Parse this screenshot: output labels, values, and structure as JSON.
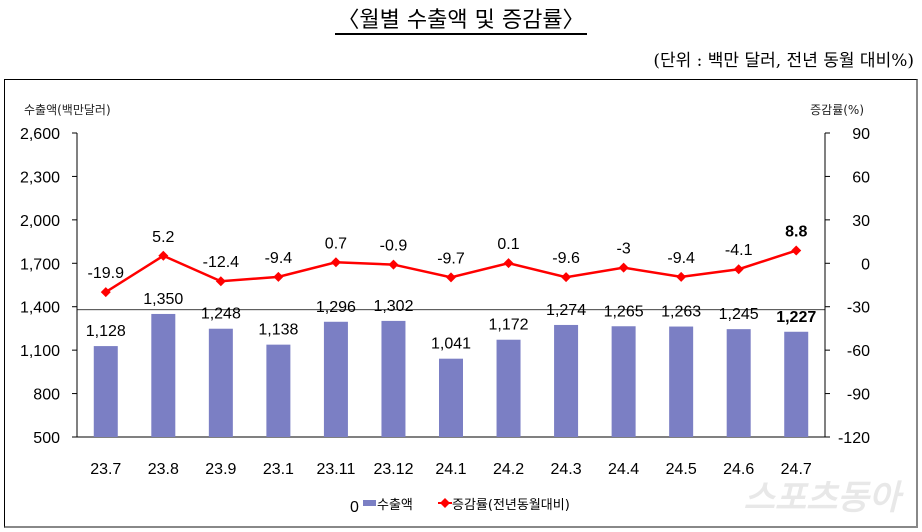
{
  "title": "〈월별 수출액 및 증감률〉",
  "unit_note": "(단위 : 백만 달러, 전년 동월 대비%)",
  "watermark": "스포츠동아",
  "chart_data": {
    "type": "bar+line",
    "categories": [
      "23.7",
      "23.8",
      "23.9",
      "23.1",
      "23.11",
      "23.12",
      "24.1",
      "24.2",
      "24.3",
      "24.4",
      "24.5",
      "24.6",
      "24.7"
    ],
    "left_axis": {
      "label": "수출액(백만달러)",
      "range": [
        500,
        2600
      ],
      "ticks": [
        "2,600",
        "2,300",
        "2,000",
        "1,700",
        "1,400",
        "1,100",
        "800",
        "500"
      ]
    },
    "right_axis": {
      "label": "증감률(%)",
      "range": [
        -120,
        90
      ],
      "ticks": [
        "90",
        "60",
        "30",
        "0",
        "-30",
        "-60",
        "-90",
        "-120"
      ]
    },
    "series": [
      {
        "name": "수출액",
        "type": "bar",
        "axis": "left",
        "color": "#7b7fc4",
        "values": [
          1128,
          1350,
          1248,
          1138,
          1296,
          1302,
          1041,
          1172,
          1274,
          1265,
          1263,
          1245,
          1227
        ],
        "labels": [
          "1,128",
          "1,350",
          "1,248",
          "1,138",
          "1,296",
          "1,302",
          "1,041",
          "1,172",
          "1,274",
          "1,265",
          "1,263",
          "1,245",
          "1,227"
        ]
      },
      {
        "name": "증감률(전년동월대비)",
        "type": "line",
        "axis": "right",
        "color": "#ff0000",
        "values": [
          -19.9,
          5.2,
          -12.4,
          -9.4,
          0.7,
          -0.9,
          -9.7,
          0.1,
          -9.6,
          -3,
          -9.4,
          -4.1,
          8.8
        ],
        "labels": [
          "-19.9",
          "5.2",
          "-12.4",
          "-9.4",
          "0.7",
          "-0.9",
          "-9.7",
          "0.1",
          "-9.6",
          "-3",
          "-9.4",
          "-4.1",
          "8.8"
        ]
      }
    ],
    "legend": {
      "position": "bottom",
      "prefix": "0"
    },
    "grid": false
  }
}
